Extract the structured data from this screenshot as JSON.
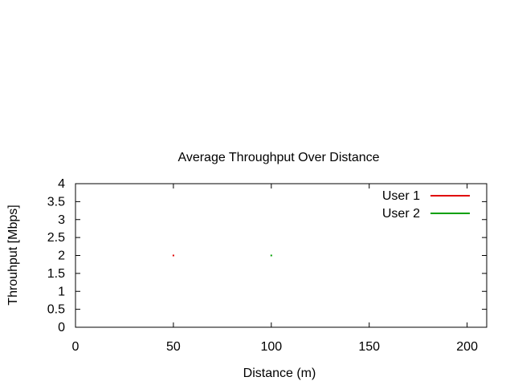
{
  "chart_data": {
    "type": "scatter",
    "title": "Average Throughput Over Distance",
    "xlabel": "Distance (m)",
    "ylabel": "Throuhput [Mbps]",
    "xlim": [
      0,
      210
    ],
    "ylim": [
      0,
      4
    ],
    "xticks": [
      0,
      50,
      100,
      150,
      200
    ],
    "yticks": [
      0,
      0.5,
      1,
      1.5,
      2,
      2.5,
      3,
      3.5,
      4
    ],
    "grid": false,
    "legend_position": "top-right",
    "series": [
      {
        "name": "User 1",
        "color": "#e00000",
        "points": [
          {
            "x": 50,
            "y": 2
          }
        ]
      },
      {
        "name": "User 2",
        "color": "#00a000",
        "points": [
          {
            "x": 100,
            "y": 2
          }
        ]
      }
    ]
  }
}
